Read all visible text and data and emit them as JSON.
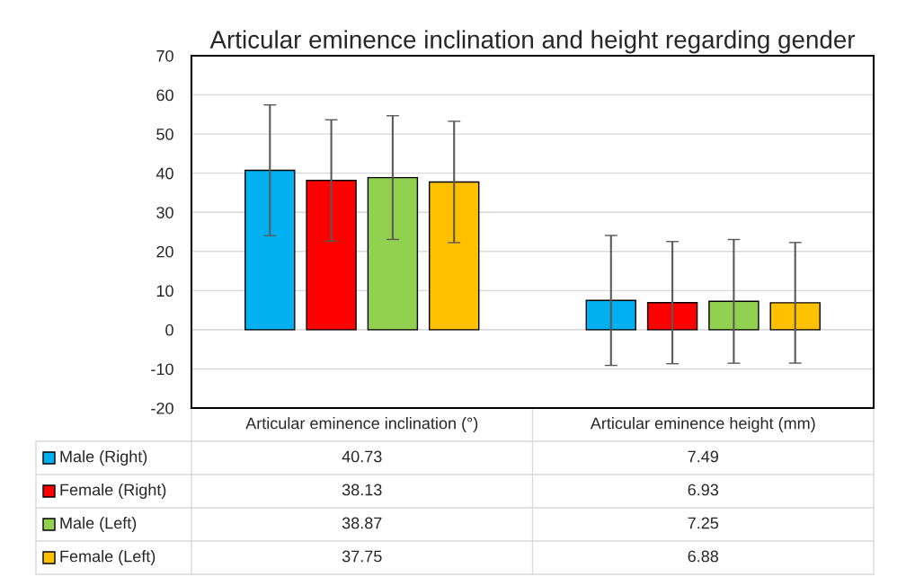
{
  "chart_data": {
    "type": "bar",
    "title": "Articular eminence inclination and height regarding gender",
    "categories": [
      "Articular eminence inclination (°)",
      "Articular eminence height (mm)"
    ],
    "series": [
      {
        "name": "Male (Right)",
        "color": "#00b0f0",
        "values": [
          40.73,
          7.49
        ],
        "errors": [
          16.7,
          16.6
        ]
      },
      {
        "name": "Female (Right)",
        "color": "#ff0000",
        "values": [
          38.13,
          6.93
        ],
        "errors": [
          15.5,
          15.6
        ]
      },
      {
        "name": "Male (Left)",
        "color": "#92d050",
        "values": [
          38.87,
          7.25
        ],
        "errors": [
          15.8,
          15.8
        ]
      },
      {
        "name": "Female (Left)",
        "color": "#ffc000",
        "values": [
          37.75,
          6.88
        ],
        "errors": [
          15.5,
          15.4
        ]
      }
    ],
    "ylim": [
      -20,
      70
    ],
    "yticks": [
      -20,
      -10,
      0,
      10,
      20,
      30,
      40,
      50,
      60,
      70
    ],
    "grid": "y",
    "legend": "bottom",
    "data_labels": true
  }
}
